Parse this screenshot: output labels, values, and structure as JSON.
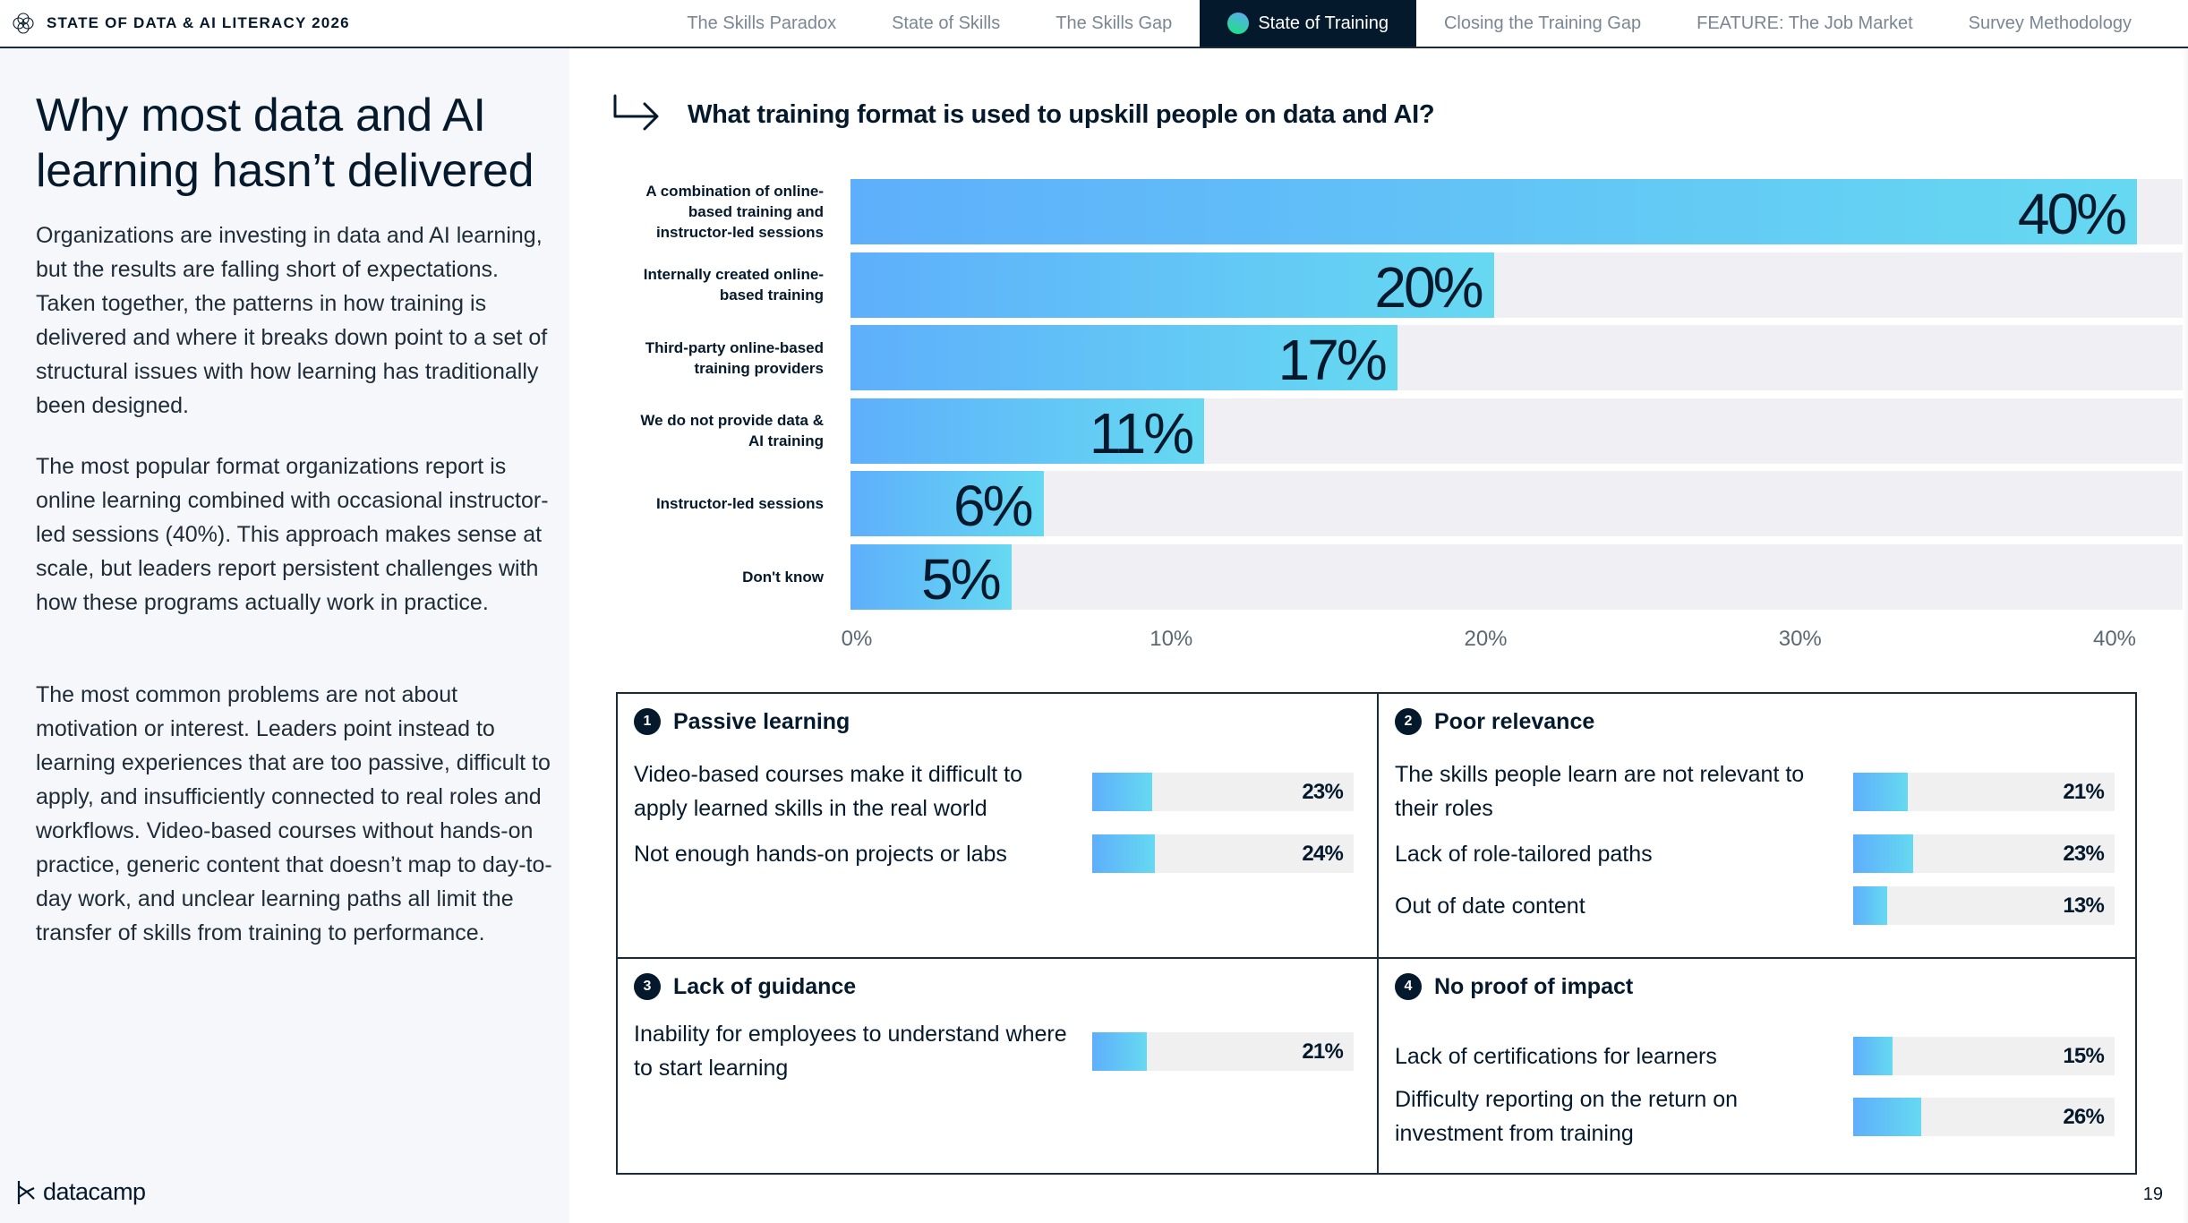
{
  "header": {
    "title": "STATE OF DATA & AI LITERACY 2026",
    "brand_icon": "flower-of-life-icon"
  },
  "nav": {
    "tabs": [
      {
        "label": "The Skills Paradox",
        "active": false
      },
      {
        "label": "State of Skills",
        "active": false
      },
      {
        "label": "The Skills Gap",
        "active": false
      },
      {
        "label": "State of Training",
        "active": true
      },
      {
        "label": "Closing the Training Gap",
        "active": false
      },
      {
        "label": "FEATURE: The Job Market",
        "active": false
      },
      {
        "label": "Survey Methodology",
        "active": false
      }
    ]
  },
  "sidebar": {
    "title": "Why most data and AI learning hasn’t delivered",
    "paragraphs": [
      "Organizations are investing in data and AI learning, but the results are falling short of expectations. Taken together, the patterns in how training is delivered and where it breaks down point to a set of structural issues with how learning has traditionally been designed.",
      "The most popular format organizations report is online learning combined with occasional instructor-led sessions (40%). This approach makes sense at scale, but leaders report persistent challenges with how these programs actually work in practice.",
      "The most common problems are not about motivation or interest. Leaders point instead to learning experiences that are too passive, difficult to apply, and insufficiently connected to real roles and workflows. Video-based courses without hands-on practice, generic content that doesn’t map to day-to-day work, and unclear learning paths all limit the transfer of skills from training to performance."
    ],
    "logo_text": "datacamp"
  },
  "chart_data": {
    "type": "bar",
    "orientation": "horizontal",
    "title": "What training format is used to upskill people on data and AI?",
    "categories": [
      "A combination of online-based training and instructor-led sessions",
      "Internally created online-based training",
      "Third-party online-based training providers",
      "We do not provide data & AI training",
      "Instructor-led sessions",
      "Don't know"
    ],
    "values": [
      40,
      20,
      17,
      11,
      6,
      5
    ],
    "value_labels": [
      "40%",
      "20%",
      "17%",
      "11%",
      "6%",
      "5%"
    ],
    "xlabel": "",
    "ylabel": "",
    "xlim": [
      0,
      40
    ],
    "xticks": [
      "0%",
      "10%",
      "20%",
      "30%",
      "40%"
    ],
    "grid": false,
    "colors": {
      "bar_start": "#5eaffb",
      "bar_end": "#66d9f1",
      "track": "#efeff4"
    }
  },
  "cards": [
    {
      "number": "1",
      "title": "Passive learning",
      "items": [
        {
          "text": "Video-based courses make it difficult to apply learned skills in the real world",
          "value": 23,
          "label": "23%"
        },
        {
          "text": "Not enough hands-on projects or labs",
          "value": 24,
          "label": "24%"
        }
      ]
    },
    {
      "number": "2",
      "title": "Poor relevance",
      "items": [
        {
          "text": "The skills people learn are not relevant to their roles",
          "value": 21,
          "label": "21%"
        },
        {
          "text": "Lack of role-tailored paths",
          "value": 23,
          "label": "23%"
        },
        {
          "text": "Out of date content",
          "value": 13,
          "label": "13%"
        }
      ]
    },
    {
      "number": "3",
      "title": "Lack of guidance",
      "items": [
        {
          "text": "Inability for employees to understand where to start learning",
          "value": 21,
          "label": "21%"
        }
      ]
    },
    {
      "number": "4",
      "title": "No proof of impact",
      "items": [
        {
          "text": "Lack of certifications for learners",
          "value": 15,
          "label": "15%"
        },
        {
          "text": "Difficulty reporting on the return on investment from training",
          "value": 26,
          "label": "26%"
        }
      ]
    }
  ],
  "footer": {
    "page_number": "19"
  }
}
